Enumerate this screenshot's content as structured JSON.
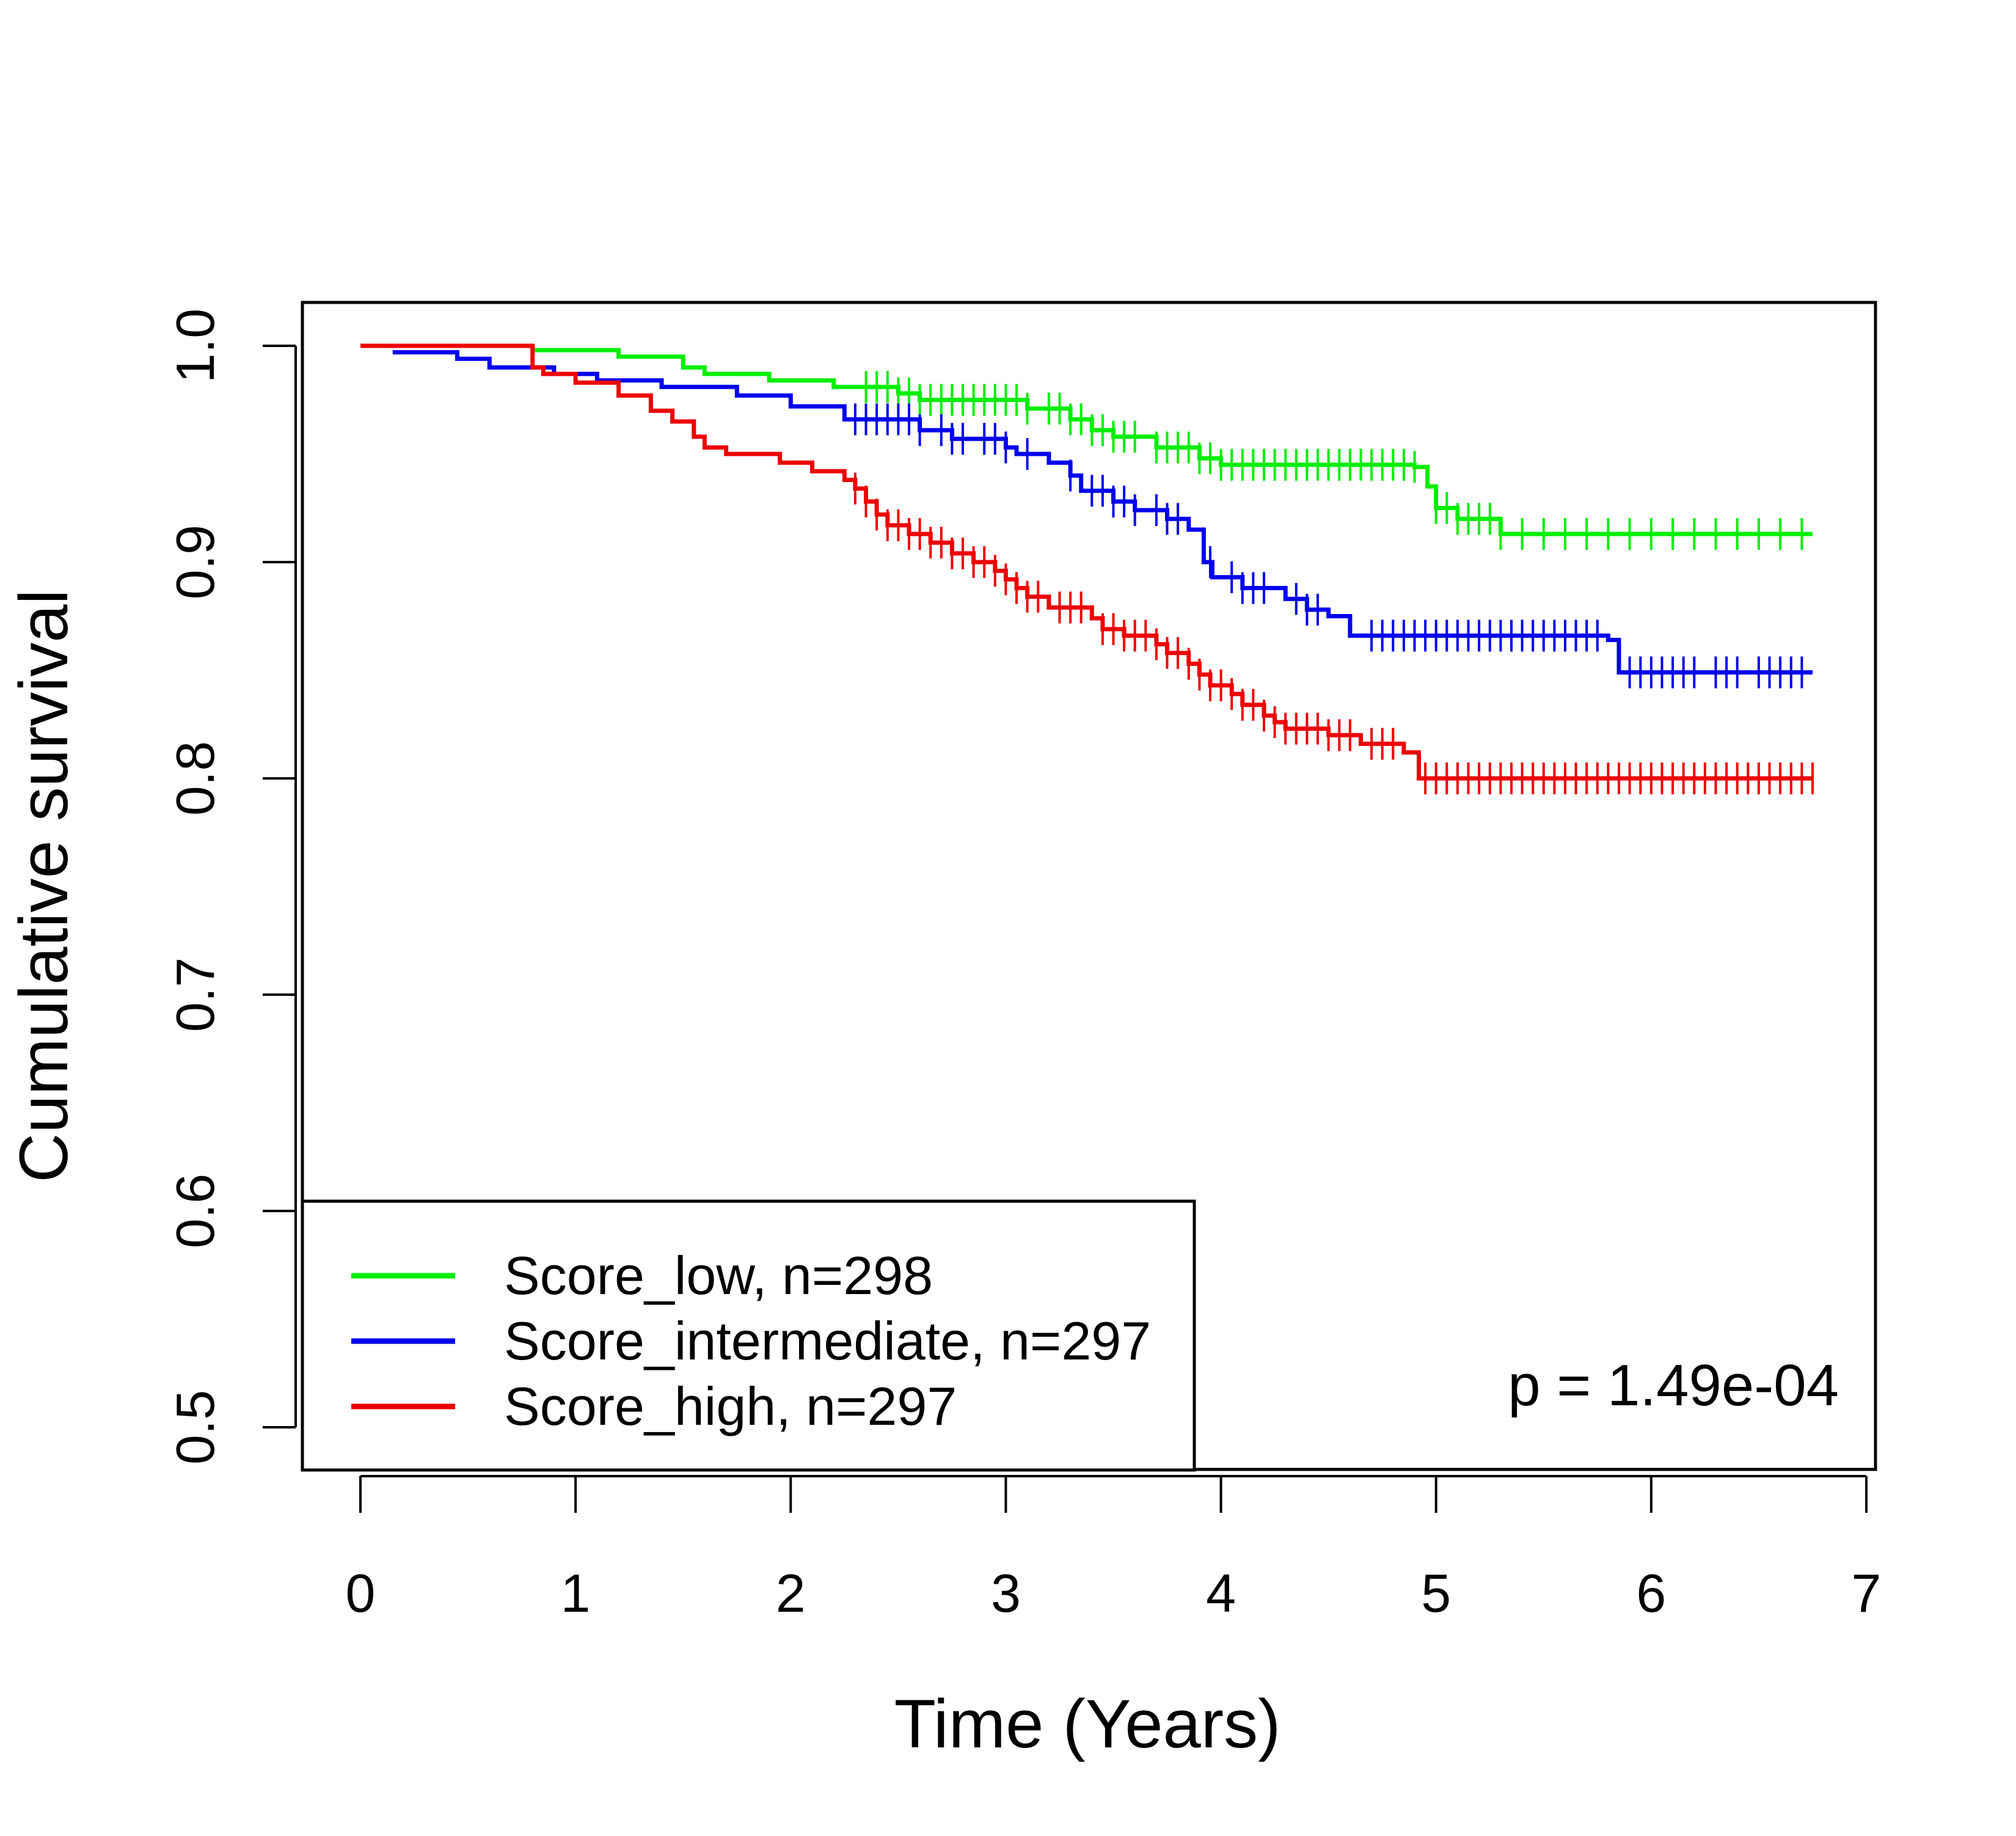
{
  "chart_data": {
    "type": "line",
    "subtype": "kaplan-meier",
    "title": "",
    "xlabel": "Time (Years)",
    "ylabel": "Cumulative survival",
    "xlim": [
      0,
      7
    ],
    "ylim": [
      0.5,
      1.0
    ],
    "x_ticks": [
      "0",
      "1",
      "2",
      "3",
      "4",
      "5",
      "6",
      "7"
    ],
    "y_ticks": [
      "0.5",
      "0.6",
      "0.7",
      "0.8",
      "0.9",
      "1.0"
    ],
    "grid": false,
    "legend_position": "bottom-left",
    "annotation": "p = 1.49e-04",
    "series": [
      {
        "name": "Score_low, n=298",
        "color": "#00ee00",
        "steps": [
          [
            0,
            1.0
          ],
          [
            0.8,
            0.998
          ],
          [
            1.2,
            0.995
          ],
          [
            1.5,
            0.99
          ],
          [
            1.6,
            0.987
          ],
          [
            1.9,
            0.984
          ],
          [
            2.2,
            0.981
          ],
          [
            2.5,
            0.978
          ],
          [
            2.6,
            0.975
          ],
          [
            3.1,
            0.971
          ],
          [
            3.3,
            0.966
          ],
          [
            3.4,
            0.961
          ],
          [
            3.5,
            0.958
          ],
          [
            3.7,
            0.953
          ],
          [
            3.9,
            0.948
          ],
          [
            4.0,
            0.945
          ],
          [
            4.9,
            0.944
          ],
          [
            4.96,
            0.935
          ],
          [
            5.0,
            0.925
          ],
          [
            5.1,
            0.92
          ],
          [
            5.3,
            0.913
          ],
          [
            6.75,
            0.913
          ]
        ],
        "censor_x": [
          2.35,
          2.4,
          2.45,
          2.5,
          2.55,
          2.6,
          2.65,
          2.7,
          2.75,
          2.8,
          2.85,
          2.9,
          2.95,
          3.0,
          3.05,
          3.1,
          3.2,
          3.25,
          3.3,
          3.35,
          3.4,
          3.45,
          3.5,
          3.55,
          3.6,
          3.7,
          3.75,
          3.8,
          3.85,
          3.9,
          3.95,
          4.0,
          4.05,
          4.1,
          4.15,
          4.2,
          4.25,
          4.3,
          4.35,
          4.4,
          4.45,
          4.5,
          4.55,
          4.6,
          4.65,
          4.7,
          4.75,
          4.8,
          4.85,
          4.9,
          5.0,
          5.05,
          5.1,
          5.15,
          5.2,
          5.25,
          5.3,
          5.4,
          5.5,
          5.6,
          5.7,
          5.8,
          5.9,
          6.0,
          6.1,
          6.2,
          6.3,
          6.4,
          6.5,
          6.6,
          6.7
        ]
      },
      {
        "name": "Score_intermediate, n=297",
        "color": "#0000ee",
        "steps": [
          [
            0.15,
            0.997
          ],
          [
            0.45,
            0.994
          ],
          [
            0.6,
            0.99
          ],
          [
            0.9,
            0.987
          ],
          [
            1.1,
            0.984
          ],
          [
            1.4,
            0.981
          ],
          [
            1.75,
            0.977
          ],
          [
            2.0,
            0.972
          ],
          [
            2.25,
            0.966
          ],
          [
            2.6,
            0.961
          ],
          [
            2.75,
            0.957
          ],
          [
            3.0,
            0.953
          ],
          [
            3.05,
            0.95
          ],
          [
            3.2,
            0.946
          ],
          [
            3.3,
            0.94
          ],
          [
            3.35,
            0.933
          ],
          [
            3.5,
            0.928
          ],
          [
            3.6,
            0.924
          ],
          [
            3.75,
            0.92
          ],
          [
            3.85,
            0.915
          ],
          [
            3.92,
            0.9
          ],
          [
            3.96,
            0.893
          ],
          [
            4.1,
            0.888
          ],
          [
            4.3,
            0.883
          ],
          [
            4.4,
            0.878
          ],
          [
            4.5,
            0.875
          ],
          [
            4.6,
            0.866
          ],
          [
            4.65,
            0.866
          ],
          [
            5.8,
            0.864
          ],
          [
            5.85,
            0.849
          ],
          [
            6.75,
            0.849
          ]
        ],
        "censor_x": [
          2.3,
          2.35,
          2.4,
          2.45,
          2.5,
          2.55,
          2.6,
          2.7,
          2.75,
          2.8,
          2.9,
          2.95,
          3.0,
          3.1,
          3.3,
          3.4,
          3.45,
          3.5,
          3.55,
          3.6,
          3.7,
          3.75,
          3.8,
          3.95,
          4.05,
          4.1,
          4.15,
          4.2,
          4.35,
          4.4,
          4.45,
          4.7,
          4.75,
          4.8,
          4.85,
          4.9,
          4.95,
          5.0,
          5.05,
          5.1,
          5.15,
          5.2,
          5.25,
          5.3,
          5.35,
          5.4,
          5.45,
          5.5,
          5.55,
          5.6,
          5.65,
          5.7,
          5.75,
          5.9,
          5.95,
          6.0,
          6.05,
          6.1,
          6.15,
          6.2,
          6.3,
          6.35,
          6.4,
          6.5,
          6.55,
          6.6,
          6.65,
          6.7
        ]
      },
      {
        "name": "Score_high, n=297",
        "color": "#ee0000",
        "steps": [
          [
            0,
            1.0
          ],
          [
            0.8,
            0.99
          ],
          [
            0.85,
            0.987
          ],
          [
            1.0,
            0.983
          ],
          [
            1.2,
            0.977
          ],
          [
            1.35,
            0.97
          ],
          [
            1.45,
            0.965
          ],
          [
            1.55,
            0.958
          ],
          [
            1.6,
            0.953
          ],
          [
            1.7,
            0.95
          ],
          [
            1.95,
            0.946
          ],
          [
            2.1,
            0.942
          ],
          [
            2.25,
            0.938
          ],
          [
            2.3,
            0.934
          ],
          [
            2.35,
            0.928
          ],
          [
            2.4,
            0.922
          ],
          [
            2.45,
            0.917
          ],
          [
            2.55,
            0.913
          ],
          [
            2.65,
            0.909
          ],
          [
            2.75,
            0.904
          ],
          [
            2.85,
            0.9
          ],
          [
            2.95,
            0.896
          ],
          [
            3.0,
            0.892
          ],
          [
            3.05,
            0.888
          ],
          [
            3.1,
            0.884
          ],
          [
            3.2,
            0.879
          ],
          [
            3.4,
            0.874
          ],
          [
            3.45,
            0.869
          ],
          [
            3.55,
            0.866
          ],
          [
            3.7,
            0.862
          ],
          [
            3.75,
            0.858
          ],
          [
            3.85,
            0.853
          ],
          [
            3.9,
            0.848
          ],
          [
            3.95,
            0.843
          ],
          [
            4.05,
            0.839
          ],
          [
            4.1,
            0.834
          ],
          [
            4.2,
            0.829
          ],
          [
            4.25,
            0.826
          ],
          [
            4.3,
            0.823
          ],
          [
            4.5,
            0.82
          ],
          [
            4.65,
            0.816
          ],
          [
            4.85,
            0.812
          ],
          [
            4.92,
            0.8
          ],
          [
            6.75,
            0.8
          ]
        ],
        "censor_x": [
          2.3,
          2.35,
          2.4,
          2.45,
          2.5,
          2.55,
          2.6,
          2.65,
          2.7,
          2.75,
          2.8,
          2.85,
          2.9,
          2.95,
          3.0,
          3.05,
          3.1,
          3.15,
          3.25,
          3.3,
          3.35,
          3.45,
          3.5,
          3.55,
          3.6,
          3.65,
          3.7,
          3.75,
          3.8,
          3.85,
          3.9,
          3.95,
          4.0,
          4.05,
          4.1,
          4.15,
          4.2,
          4.25,
          4.3,
          4.35,
          4.4,
          4.45,
          4.5,
          4.55,
          4.6,
          4.7,
          4.75,
          4.8,
          4.95,
          5.0,
          5.05,
          5.1,
          5.15,
          5.2,
          5.25,
          5.3,
          5.35,
          5.4,
          5.45,
          5.5,
          5.55,
          5.6,
          5.65,
          5.7,
          5.75,
          5.8,
          5.85,
          5.9,
          5.95,
          6.0,
          6.05,
          6.1,
          6.15,
          6.2,
          6.25,
          6.3,
          6.35,
          6.4,
          6.45,
          6.5,
          6.55,
          6.6,
          6.65,
          6.7,
          6.75
        ]
      }
    ]
  }
}
